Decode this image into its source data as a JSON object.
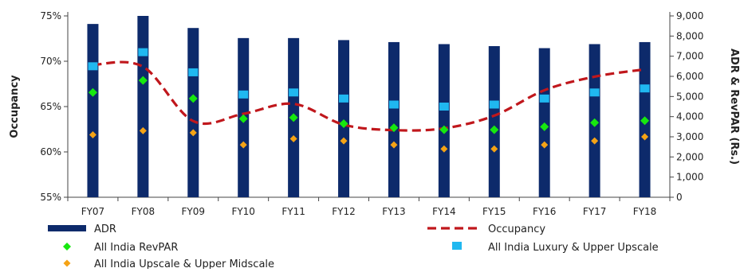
{
  "chart_data": {
    "type": "bar",
    "categories": [
      "FY07",
      "FY08",
      "FY09",
      "FY10",
      "FY11",
      "FY12",
      "FY13",
      "FY14",
      "FY15",
      "FY16",
      "FY17",
      "FY18"
    ],
    "ylabel_left": "Occupancy",
    "ylabel_right": "ADR & RevPAR (Rs.)",
    "left_axis": {
      "range": [
        0.55,
        0.75
      ],
      "ticks": [
        0.55,
        0.6,
        0.65,
        0.7,
        0.75
      ],
      "tick_labels": [
        "55%",
        "60%",
        "65%",
        "70%",
        "75%"
      ]
    },
    "right_axis": {
      "range": [
        0,
        9000
      ],
      "ticks": [
        0,
        1000,
        2000,
        3000,
        4000,
        5000,
        6000,
        7000,
        8000,
        9000
      ],
      "tick_labels": [
        "0",
        "1,000",
        "2,000",
        "3,000",
        "4,000",
        "5,000",
        "6,000",
        "7,000",
        "8,000",
        "9,000"
      ]
    },
    "series": [
      {
        "name": "ADR",
        "kind": "bar",
        "axis": "right",
        "color": "#0d2a6b",
        "values": [
          8600,
          9000,
          8400,
          7900,
          7900,
          7800,
          7700,
          7600,
          7500,
          7400,
          7600,
          7700
        ]
      },
      {
        "name": "Occupancy",
        "kind": "line",
        "axis": "left",
        "color": "#c0171c",
        "values": [
          0.696,
          0.694,
          0.634,
          0.642,
          0.653,
          0.63,
          0.624,
          0.626,
          0.64,
          0.668,
          0.683,
          0.691
        ]
      },
      {
        "name": "All India RevPAR",
        "kind": "marker",
        "shape": "diamond",
        "axis": "right",
        "color": "#17e80f",
        "values": [
          5200,
          5800,
          4900,
          3900,
          3950,
          3650,
          3450,
          3350,
          3350,
          3500,
          3700,
          3800
        ]
      },
      {
        "name": "All India Luxury & Upper Upscale",
        "kind": "marker",
        "shape": "square",
        "axis": "right",
        "color": "#20b8f0",
        "values": [
          6500,
          7200,
          6200,
          5100,
          5200,
          4900,
          4600,
          4500,
          4600,
          4900,
          5200,
          5400
        ]
      },
      {
        "name": "All India Upscale & Upper Midscale",
        "kind": "marker",
        "shape": "diamond",
        "axis": "right",
        "color": "#f5a315",
        "values": [
          3100,
          3300,
          3200,
          2600,
          2900,
          2800,
          2600,
          2400,
          2400,
          2600,
          2800,
          3000
        ]
      }
    ],
    "legend": {
      "placement": "bottom",
      "entries": [
        "ADR",
        "Occupancy",
        "All India RevPAR",
        "All India Luxury & Upper Upscale",
        "All India Upscale & Upper Midscale"
      ]
    },
    "grid": false
  }
}
